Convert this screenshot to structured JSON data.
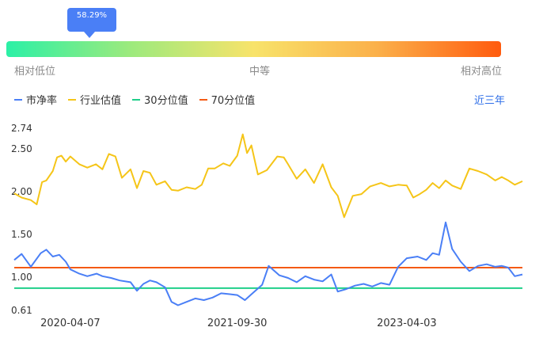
{
  "position_indicator": {
    "label": "58.29%",
    "value_percent": 58.29
  },
  "scale": {
    "low": "相对低位",
    "mid": "中等",
    "high": "相对高位"
  },
  "legend": [
    {
      "label": "市净率",
      "color": "#4a7ff6"
    },
    {
      "label": "行业估值",
      "color": "#f5c518"
    },
    {
      "label": "30分位值",
      "color": "#1fcf8a"
    },
    {
      "label": "70分位值",
      "color": "#f45a14"
    }
  ],
  "period_selector": "近三年",
  "chart_data": {
    "type": "line",
    "title": "",
    "xlabel": "",
    "ylabel": "",
    "ylim": [
      0.61,
      2.74
    ],
    "yticks": [
      "2.74",
      "2.50",
      "2.00",
      "1.50",
      "1.00",
      "0.61"
    ],
    "xticks": [
      "2020-04-07",
      "2021-09-30",
      "2023-04-03"
    ],
    "x_range": [
      "2019-10-08",
      "2024-04-12"
    ],
    "series": [
      {
        "name": "市净率",
        "color": "#4a7ff6",
        "points": [
          [
            "2019-10-08",
            1.2
          ],
          [
            "2019-11-01",
            1.27
          ],
          [
            "2019-12-01",
            1.12
          ],
          [
            "2020-01-02",
            1.28
          ],
          [
            "2020-01-20",
            1.32
          ],
          [
            "2020-02-10",
            1.24
          ],
          [
            "2020-03-02",
            1.26
          ],
          [
            "2020-03-23",
            1.18
          ],
          [
            "2020-04-07",
            1.09
          ],
          [
            "2020-05-06",
            1.04
          ],
          [
            "2020-06-01",
            1.01
          ],
          [
            "2020-07-01",
            1.04
          ],
          [
            "2020-07-20",
            1.01
          ],
          [
            "2020-08-17",
            0.99
          ],
          [
            "2020-09-14",
            0.96
          ],
          [
            "2020-10-19",
            0.94
          ],
          [
            "2020-11-09",
            0.84
          ],
          [
            "2020-11-30",
            0.92
          ],
          [
            "2020-12-21",
            0.96
          ],
          [
            "2021-01-11",
            0.94
          ],
          [
            "2021-02-08",
            0.88
          ],
          [
            "2021-03-01",
            0.71
          ],
          [
            "2021-03-22",
            0.67
          ],
          [
            "2021-04-19",
            0.71
          ],
          [
            "2021-05-17",
            0.75
          ],
          [
            "2021-06-14",
            0.73
          ],
          [
            "2021-07-12",
            0.76
          ],
          [
            "2021-08-09",
            0.81
          ],
          [
            "2021-09-06",
            0.8
          ],
          [
            "2021-09-30",
            0.79
          ],
          [
            "2021-10-25",
            0.73
          ],
          [
            "2021-11-22",
            0.82
          ],
          [
            "2021-12-20",
            0.91
          ],
          [
            "2022-01-10",
            1.13
          ],
          [
            "2022-02-14",
            1.02
          ],
          [
            "2022-03-14",
            0.99
          ],
          [
            "2022-04-11",
            0.94
          ],
          [
            "2022-05-09",
            1.01
          ],
          [
            "2022-06-06",
            0.97
          ],
          [
            "2022-07-04",
            0.95
          ],
          [
            "2022-08-01",
            1.03
          ],
          [
            "2022-08-22",
            0.83
          ],
          [
            "2022-09-19",
            0.86
          ],
          [
            "2022-10-17",
            0.9
          ],
          [
            "2022-11-14",
            0.92
          ],
          [
            "2022-12-12",
            0.89
          ],
          [
            "2023-01-09",
            0.93
          ],
          [
            "2023-02-06",
            0.91
          ],
          [
            "2023-03-06",
            1.12
          ],
          [
            "2023-04-03",
            1.22
          ],
          [
            "2023-05-08",
            1.24
          ],
          [
            "2023-06-05",
            1.2
          ],
          [
            "2023-06-26",
            1.28
          ],
          [
            "2023-07-17",
            1.26
          ],
          [
            "2023-08-07",
            1.64
          ],
          [
            "2023-08-28",
            1.33
          ],
          [
            "2023-09-25",
            1.18
          ],
          [
            "2023-10-23",
            1.07
          ],
          [
            "2023-11-20",
            1.13
          ],
          [
            "2023-12-18",
            1.15
          ],
          [
            "2024-01-15",
            1.12
          ],
          [
            "2024-02-05",
            1.13
          ],
          [
            "2024-02-26",
            1.11
          ],
          [
            "2024-03-18",
            1.01
          ],
          [
            "2024-04-12",
            1.03
          ]
        ]
      },
      {
        "name": "行业估值",
        "color": "#f5c518",
        "points": [
          [
            "2019-10-08",
            1.98
          ],
          [
            "2019-11-01",
            1.93
          ],
          [
            "2019-12-01",
            1.9
          ],
          [
            "2019-12-20",
            1.85
          ],
          [
            "2020-01-06",
            2.11
          ],
          [
            "2020-01-20",
            2.13
          ],
          [
            "2020-02-10",
            2.24
          ],
          [
            "2020-02-24",
            2.4
          ],
          [
            "2020-03-09",
            2.42
          ],
          [
            "2020-03-23",
            2.35
          ],
          [
            "2020-04-07",
            2.41
          ],
          [
            "2020-05-06",
            2.32
          ],
          [
            "2020-06-01",
            2.28
          ],
          [
            "2020-06-29",
            2.32
          ],
          [
            "2020-07-20",
            2.26
          ],
          [
            "2020-08-10",
            2.44
          ],
          [
            "2020-08-31",
            2.41
          ],
          [
            "2020-09-21",
            2.16
          ],
          [
            "2020-10-19",
            2.26
          ],
          [
            "2020-11-09",
            2.04
          ],
          [
            "2020-11-30",
            2.24
          ],
          [
            "2020-12-21",
            2.22
          ],
          [
            "2021-01-11",
            2.08
          ],
          [
            "2021-02-08",
            2.12
          ],
          [
            "2021-03-01",
            2.02
          ],
          [
            "2021-03-22",
            2.01
          ],
          [
            "2021-04-19",
            2.05
          ],
          [
            "2021-05-17",
            2.03
          ],
          [
            "2021-06-07",
            2.08
          ],
          [
            "2021-06-28",
            2.27
          ],
          [
            "2021-07-19",
            2.27
          ],
          [
            "2021-08-16",
            2.33
          ],
          [
            "2021-09-06",
            2.3
          ],
          [
            "2021-09-30",
            2.42
          ],
          [
            "2021-10-18",
            2.67
          ],
          [
            "2021-11-01",
            2.45
          ],
          [
            "2021-11-15",
            2.54
          ],
          [
            "2021-12-06",
            2.2
          ],
          [
            "2022-01-04",
            2.25
          ],
          [
            "2022-02-07",
            2.41
          ],
          [
            "2022-02-28",
            2.4
          ],
          [
            "2022-03-14",
            2.32
          ],
          [
            "2022-04-11",
            2.15
          ],
          [
            "2022-05-09",
            2.26
          ],
          [
            "2022-06-06",
            2.1
          ],
          [
            "2022-07-04",
            2.32
          ],
          [
            "2022-08-01",
            2.05
          ],
          [
            "2022-08-22",
            1.95
          ],
          [
            "2022-09-12",
            1.7
          ],
          [
            "2022-10-10",
            1.95
          ],
          [
            "2022-11-07",
            1.97
          ],
          [
            "2022-12-05",
            2.06
          ],
          [
            "2023-01-09",
            2.1
          ],
          [
            "2023-02-06",
            2.06
          ],
          [
            "2023-03-06",
            2.08
          ],
          [
            "2023-04-03",
            2.07
          ],
          [
            "2023-04-24",
            1.93
          ],
          [
            "2023-05-15",
            1.97
          ],
          [
            "2023-06-05",
            2.02
          ],
          [
            "2023-06-26",
            2.1
          ],
          [
            "2023-07-17",
            2.04
          ],
          [
            "2023-08-07",
            2.13
          ],
          [
            "2023-08-28",
            2.07
          ],
          [
            "2023-09-25",
            2.03
          ],
          [
            "2023-10-23",
            2.27
          ],
          [
            "2023-11-20",
            2.24
          ],
          [
            "2023-12-18",
            2.2
          ],
          [
            "2024-01-15",
            2.13
          ],
          [
            "2024-02-05",
            2.17
          ],
          [
            "2024-02-26",
            2.13
          ],
          [
            "2024-03-18",
            2.08
          ],
          [
            "2024-04-12",
            2.12
          ]
        ]
      },
      {
        "name": "30分位值",
        "color": "#1fcf8a",
        "constant": 0.87
      },
      {
        "name": "70分位值",
        "color": "#f45a14",
        "constant": 1.11
      }
    ]
  }
}
